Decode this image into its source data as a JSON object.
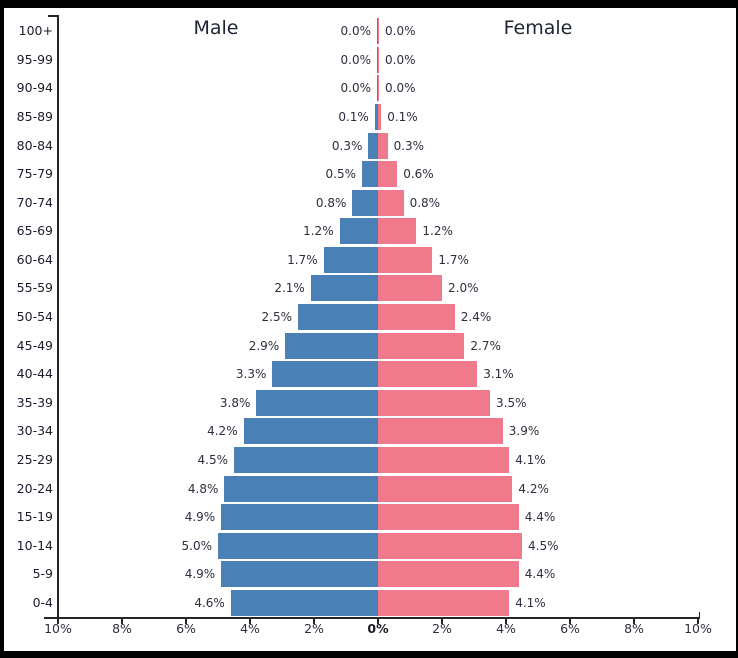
{
  "colors": {
    "male_bar": "#4a80b5",
    "female_bar": "#f0798b",
    "axis": "#262626",
    "text": "#2e2e3e",
    "frame": "#000000",
    "background": "#ffffff"
  },
  "axis": {
    "tick_labels": [
      "10%",
      "8%",
      "6%",
      "4%",
      "2%",
      "0%",
      "2%",
      "4%",
      "6%",
      "8%",
      "10%"
    ],
    "bold_index": 5
  },
  "chart_data": {
    "type": "bar",
    "variant": "population-pyramid",
    "orientation": "horizontal",
    "title": "",
    "xlabel": "",
    "ylabel": "",
    "grid": false,
    "legend": false,
    "categories": [
      "100+",
      "95-99",
      "90-94",
      "85-89",
      "80-84",
      "75-79",
      "70-74",
      "65-69",
      "60-64",
      "55-59",
      "50-54",
      "45-49",
      "40-44",
      "35-39",
      "30-34",
      "25-29",
      "20-24",
      "15-19",
      "10-14",
      "5-9",
      "0-4"
    ],
    "x_axis": {
      "unit": "%",
      "max_percent_each_side": 10,
      "tick_step_percent": 2,
      "tick_labels": [
        "10%",
        "8%",
        "6%",
        "4%",
        "2%",
        "0%",
        "2%",
        "4%",
        "6%",
        "8%",
        "10%"
      ]
    },
    "series": [
      {
        "name": "Male",
        "side": "left",
        "color": "#4a80b5",
        "values": [
          0.0,
          0.0,
          0.0,
          0.1,
          0.3,
          0.5,
          0.8,
          1.2,
          1.7,
          2.1,
          2.5,
          2.9,
          3.3,
          3.8,
          4.2,
          4.5,
          4.8,
          4.9,
          5.0,
          4.9,
          4.6
        ],
        "labels": [
          "0.0%",
          "0.0%",
          "0.0%",
          "0.1%",
          "0.3%",
          "0.5%",
          "0.8%",
          "1.2%",
          "1.7%",
          "2.1%",
          "2.5%",
          "2.9%",
          "3.3%",
          "3.8%",
          "4.2%",
          "4.5%",
          "4.8%",
          "4.9%",
          "5.0%",
          "4.9%",
          "4.6%"
        ]
      },
      {
        "name": "Female",
        "side": "right",
        "color": "#f0798b",
        "values": [
          0.0,
          0.0,
          0.0,
          0.1,
          0.3,
          0.6,
          0.8,
          1.2,
          1.7,
          2.0,
          2.4,
          2.7,
          3.1,
          3.5,
          3.9,
          4.1,
          4.2,
          4.4,
          4.5,
          4.4,
          4.1
        ],
        "labels": [
          "0.0%",
          "0.0%",
          "0.0%",
          "0.1%",
          "0.3%",
          "0.6%",
          "0.8%",
          "1.2%",
          "1.7%",
          "2.0%",
          "2.4%",
          "2.7%",
          "3.1%",
          "3.5%",
          "3.9%",
          "4.1%",
          "4.2%",
          "4.4%",
          "4.5%",
          "4.4%",
          "4.1%"
        ]
      }
    ]
  }
}
